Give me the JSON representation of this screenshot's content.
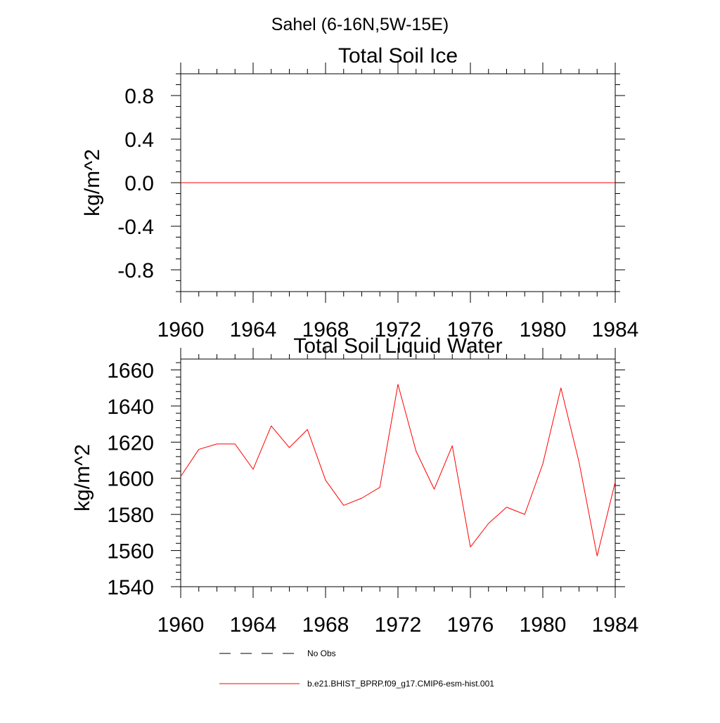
{
  "page_title": "Sahel (6-16N,5W-15E)",
  "colors": {
    "model": "#ff0000",
    "obs": "#000000",
    "axis": "#000000"
  },
  "chart_data": [
    {
      "type": "line",
      "title": "Total Soil Ice",
      "ylabel": "kg/m^2",
      "xlabel": "",
      "xlim": [
        1960,
        1984
      ],
      "ylim": [
        -1.0,
        1.0
      ],
      "x_ticks": [
        1960,
        1964,
        1968,
        1972,
        1976,
        1980,
        1984
      ],
      "x_tick_labels": [
        "1960",
        "1964",
        "1968",
        "1972",
        "1976",
        "1980",
        "1984"
      ],
      "x_minor_step": 1,
      "y_ticks": [
        -0.8,
        -0.4,
        0.0,
        0.4,
        0.8
      ],
      "y_tick_labels": [
        "-0.8",
        "-0.4",
        "0.0",
        "0.4",
        "0.8"
      ],
      "y_minor_step": 0.1,
      "grid": false,
      "series": [
        {
          "name": "b.e21.BHIST_BPRP.f09_g17.CMIP6-esm-hist.001",
          "color": "#ff0000",
          "x": [
            1960,
            1961,
            1962,
            1963,
            1964,
            1965,
            1966,
            1967,
            1968,
            1969,
            1970,
            1971,
            1972,
            1973,
            1974,
            1975,
            1976,
            1977,
            1978,
            1979,
            1980,
            1981,
            1982,
            1983,
            1984
          ],
          "y": [
            0,
            0,
            0,
            0,
            0,
            0,
            0,
            0,
            0,
            0,
            0,
            0,
            0,
            0,
            0,
            0,
            0,
            0,
            0,
            0,
            0,
            0,
            0,
            0,
            0
          ]
        }
      ]
    },
    {
      "type": "line",
      "title": "Total Soil Liquid Water",
      "ylabel": "kg/m^2",
      "xlabel": "",
      "xlim": [
        1960,
        1984
      ],
      "ylim": [
        1540,
        1666
      ],
      "x_ticks": [
        1960,
        1964,
        1968,
        1972,
        1976,
        1980,
        1984
      ],
      "x_tick_labels": [
        "1960",
        "1964",
        "1968",
        "1972",
        "1976",
        "1980",
        "1984"
      ],
      "x_minor_step": 1,
      "y_ticks": [
        1540,
        1560,
        1580,
        1600,
        1620,
        1640,
        1660
      ],
      "y_tick_labels": [
        "1540",
        "1560",
        "1580",
        "1600",
        "1620",
        "1640",
        "1660"
      ],
      "y_minor_step": 4,
      "grid": false,
      "series": [
        {
          "name": "b.e21.BHIST_BPRP.f09_g17.CMIP6-esm-hist.001",
          "color": "#ff0000",
          "x": [
            1960,
            1961,
            1962,
            1963,
            1964,
            1965,
            1966,
            1967,
            1968,
            1969,
            1970,
            1971,
            1972,
            1973,
            1974,
            1975,
            1976,
            1977,
            1978,
            1979,
            1980,
            1981,
            1982,
            1983,
            1984
          ],
          "y": [
            1601,
            1616,
            1619,
            1619,
            1605,
            1629,
            1617,
            1627,
            1599,
            1585,
            1589,
            1595,
            1652,
            1615,
            1594,
            1618,
            1562,
            1575,
            1584,
            1580,
            1608,
            1650,
            1609,
            1557,
            1598
          ]
        }
      ]
    }
  ],
  "legend": {
    "placement": "bottom",
    "entries": [
      {
        "label": "No Obs",
        "style": "dashed",
        "color": "#000000"
      },
      {
        "label": "b.e21.BHIST_BPRP.f09_g17.CMIP6-esm-hist.001",
        "style": "solid",
        "color": "#ff0000"
      }
    ]
  }
}
